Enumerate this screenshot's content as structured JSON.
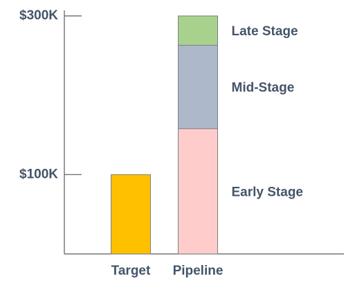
{
  "chart_data": {
    "type": "stacked-bar",
    "categories": [
      "Target",
      "Pipeline"
    ],
    "series": [
      {
        "color": "#ffc000",
        "values": [
          100000,
          null
        ]
      },
      {
        "name": "Early Stage",
        "color": "#ffcccc",
        "values": [
          null,
          158000
        ]
      },
      {
        "name": "Mid-Stage",
        "color": "#adb9ca",
        "values": [
          null,
          105000
        ]
      },
      {
        "name": "Late Stage",
        "color": "#a9d18e",
        "values": [
          null,
          37000
        ]
      }
    ],
    "ylim": [
      0,
      300000
    ],
    "yticks": [
      {
        "value": 100000,
        "label": "$100K"
      },
      {
        "value": 300000,
        "label": "$300K"
      }
    ]
  }
}
